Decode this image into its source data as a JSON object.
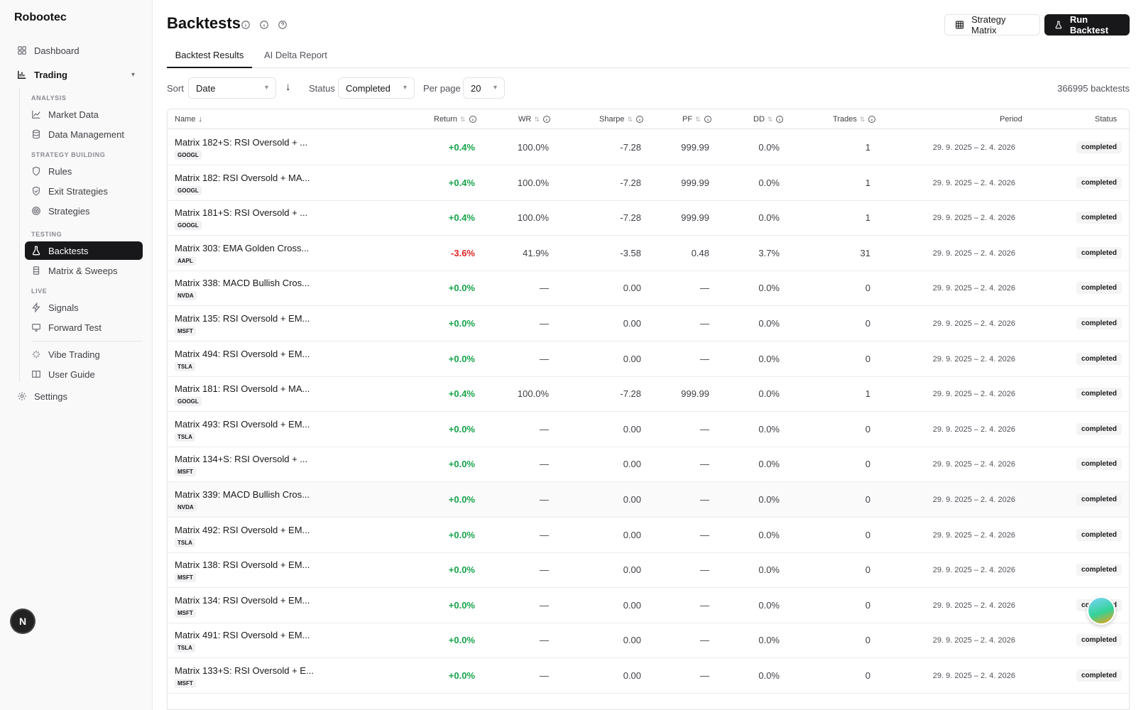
{
  "brand": "Robootec",
  "sidebar": {
    "dashboard": "Dashboard",
    "trading": "Trading",
    "sections": {
      "analysis": "ANALYSIS",
      "strategy_building": "STRATEGY BUILDING",
      "testing": "TESTING",
      "live": "LIVE"
    },
    "items": {
      "market_data": "Market Data",
      "data_management": "Data Management",
      "rules": "Rules",
      "exit_strategies": "Exit Strategies",
      "strategies": "Strategies",
      "backtests": "Backtests",
      "matrix_sweeps": "Matrix & Sweeps",
      "signals": "Signals",
      "forward_test": "Forward Test",
      "vibe_trading": "Vibe Trading",
      "user_guide": "User Guide"
    },
    "settings": "Settings",
    "user_initial": "N"
  },
  "header": {
    "title": "Backtests",
    "strategy_matrix_label": "Strategy Matrix",
    "run_backtest_label": "Run Backtest"
  },
  "tabs": {
    "results": "Backtest Results",
    "delta": "AI Delta Report"
  },
  "filters": {
    "sort_label": "Sort",
    "sort_value": "Date",
    "status_label": "Status",
    "status_value": "Completed",
    "per_page_label": "Per page",
    "per_page_value": "20",
    "count": "366995 backtests"
  },
  "columns": {
    "name": "Name",
    "return": "Return",
    "wr": "WR",
    "sharpe": "Sharpe",
    "pf": "PF",
    "dd": "DD",
    "trades": "Trades",
    "period": "Period",
    "status": "Status"
  },
  "rows": [
    {
      "name": "Matrix 182+S: RSI Oversold + ...",
      "ticker": "GOOGL",
      "ret": "+0.4%",
      "wr": "100.0%",
      "sharpe": "-7.28",
      "pf": "999.99",
      "dd": "0.0%",
      "trades": "1",
      "period": "29. 9. 2025 – 2. 4. 2026",
      "status": "completed"
    },
    {
      "name": "Matrix 182: RSI Oversold + MA...",
      "ticker": "GOOGL",
      "ret": "+0.4%",
      "wr": "100.0%",
      "sharpe": "-7.28",
      "pf": "999.99",
      "dd": "0.0%",
      "trades": "1",
      "period": "29. 9. 2025 – 2. 4. 2026",
      "status": "completed"
    },
    {
      "name": "Matrix 181+S: RSI Oversold + ...",
      "ticker": "GOOGL",
      "ret": "+0.4%",
      "wr": "100.0%",
      "sharpe": "-7.28",
      "pf": "999.99",
      "dd": "0.0%",
      "trades": "1",
      "period": "29. 9. 2025 – 2. 4. 2026",
      "status": "completed"
    },
    {
      "name": "Matrix 303: EMA Golden Cross...",
      "ticker": "AAPL",
      "ret": "-3.6%",
      "wr": "41.9%",
      "sharpe": "-3.58",
      "pf": "0.48",
      "dd": "3.7%",
      "trades": "31",
      "period": "29. 9. 2025 – 2. 4. 2026",
      "status": "completed"
    },
    {
      "name": "Matrix 338: MACD Bullish Cros...",
      "ticker": "NVDA",
      "ret": "+0.0%",
      "wr": "—",
      "sharpe": "0.00",
      "pf": "—",
      "dd": "0.0%",
      "trades": "0",
      "period": "29. 9. 2025 – 2. 4. 2026",
      "status": "completed"
    },
    {
      "name": "Matrix 135: RSI Oversold + EM...",
      "ticker": "MSFT",
      "ret": "+0.0%",
      "wr": "—",
      "sharpe": "0.00",
      "pf": "—",
      "dd": "0.0%",
      "trades": "0",
      "period": "29. 9. 2025 – 2. 4. 2026",
      "status": "completed"
    },
    {
      "name": "Matrix 494: RSI Oversold + EM...",
      "ticker": "TSLA",
      "ret": "+0.0%",
      "wr": "—",
      "sharpe": "0.00",
      "pf": "—",
      "dd": "0.0%",
      "trades": "0",
      "period": "29. 9. 2025 – 2. 4. 2026",
      "status": "completed"
    },
    {
      "name": "Matrix 181: RSI Oversold + MA...",
      "ticker": "GOOGL",
      "ret": "+0.4%",
      "wr": "100.0%",
      "sharpe": "-7.28",
      "pf": "999.99",
      "dd": "0.0%",
      "trades": "1",
      "period": "29. 9. 2025 – 2. 4. 2026",
      "status": "completed"
    },
    {
      "name": "Matrix 493: RSI Oversold + EM...",
      "ticker": "TSLA",
      "ret": "+0.0%",
      "wr": "—",
      "sharpe": "0.00",
      "pf": "—",
      "dd": "0.0%",
      "trades": "0",
      "period": "29. 9. 2025 – 2. 4. 2026",
      "status": "completed"
    },
    {
      "name": "Matrix 134+S: RSI Oversold + ...",
      "ticker": "MSFT",
      "ret": "+0.0%",
      "wr": "—",
      "sharpe": "0.00",
      "pf": "—",
      "dd": "0.0%",
      "trades": "0",
      "period": "29. 9. 2025 – 2. 4. 2026",
      "status": "completed"
    },
    {
      "name": "Matrix 339: MACD Bullish Cros...",
      "ticker": "NVDA",
      "ret": "+0.0%",
      "wr": "—",
      "sharpe": "0.00",
      "pf": "—",
      "dd": "0.0%",
      "trades": "0",
      "period": "29. 9. 2025 – 2. 4. 2026",
      "status": "completed"
    },
    {
      "name": "Matrix 492: RSI Oversold + EM...",
      "ticker": "TSLA",
      "ret": "+0.0%",
      "wr": "—",
      "sharpe": "0.00",
      "pf": "—",
      "dd": "0.0%",
      "trades": "0",
      "period": "29. 9. 2025 – 2. 4. 2026",
      "status": "completed"
    },
    {
      "name": "Matrix 138: RSI Oversold + EM...",
      "ticker": "MSFT",
      "ret": "+0.0%",
      "wr": "—",
      "sharpe": "0.00",
      "pf": "—",
      "dd": "0.0%",
      "trades": "0",
      "period": "29. 9. 2025 – 2. 4. 2026",
      "status": "completed"
    },
    {
      "name": "Matrix 134: RSI Oversold + EM...",
      "ticker": "MSFT",
      "ret": "+0.0%",
      "wr": "—",
      "sharpe": "0.00",
      "pf": "—",
      "dd": "0.0%",
      "trades": "0",
      "period": "29. 9. 2025 – 2. 4. 2026",
      "status": "completed"
    },
    {
      "name": "Matrix 491: RSI Oversold + EM...",
      "ticker": "TSLA",
      "ret": "+0.0%",
      "wr": "—",
      "sharpe": "0.00",
      "pf": "—",
      "dd": "0.0%",
      "trades": "0",
      "period": "29. 9. 2025 – 2. 4. 2026",
      "status": "completed"
    },
    {
      "name": "Matrix 133+S: RSI Oversold + E...",
      "ticker": "MSFT",
      "ret": "+0.0%",
      "wr": "—",
      "sharpe": "0.00",
      "pf": "—",
      "dd": "0.0%",
      "trades": "0",
      "period": "29. 9. 2025 – 2. 4. 2026",
      "status": "completed"
    }
  ],
  "colors": {
    "positive": "#16a34a",
    "negative": "#dc2626",
    "accent": "#18181b"
  }
}
